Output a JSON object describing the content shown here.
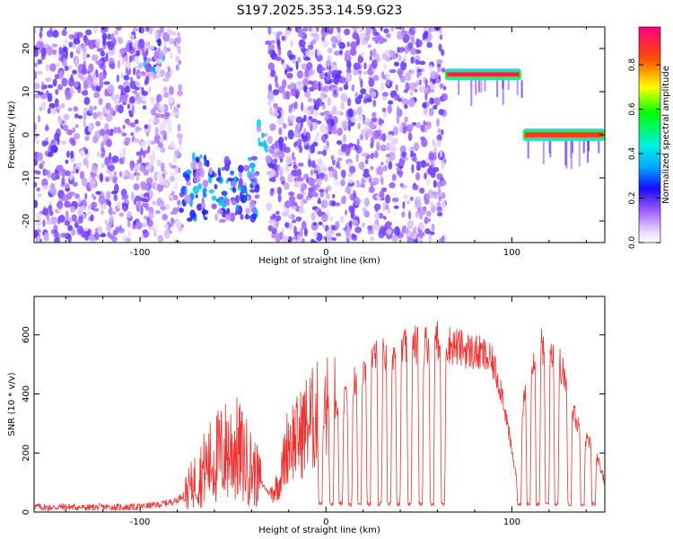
{
  "chart_data": [
    {
      "type": "heatmap",
      "title": "S197.2025.353.14.59.G23",
      "xlabel": "Height of straight line (km)",
      "ylabel": "Frequency (Hz)",
      "xlim": [
        -157,
        150
      ],
      "ylim": [
        -25,
        25
      ],
      "x_ticks": [
        -100,
        0,
        100
      ],
      "x_tick_labels": [
        "-100",
        "0",
        "100"
      ],
      "y_ticks": [
        -20,
        -10,
        0,
        10,
        20
      ],
      "y_tick_labels": [
        "-20",
        "-10",
        "0",
        "10",
        "20"
      ],
      "colorbar": {
        "label": "Normalized spectral amplitude",
        "range": [
          0,
          0.97
        ],
        "ticks": [
          0.0,
          0.2,
          0.4,
          0.6,
          0.8
        ],
        "tick_labels": [
          "0.0",
          "0.2",
          "0.4",
          "0.6",
          "0.8"
        ],
        "colormap": "rainbow"
      },
      "features": [
        {
          "name": "diffuse-noise-1",
          "x_range": [
            -157,
            -95
          ],
          "freq_range": [
            -25,
            25
          ],
          "amplitude": 0.15
        },
        {
          "name": "noise-spot-upper",
          "x_range": [
            -98,
            -88
          ],
          "freq_range": [
            15,
            22
          ],
          "amplitude": 0.3
        },
        {
          "name": "diffuse-noise-2",
          "x_range": [
            -95,
            -78
          ],
          "freq_range": [
            -25,
            25
          ],
          "amplitude": 0.1
        },
        {
          "name": "signal-cluster",
          "x_range": [
            -78,
            -37
          ],
          "freq_range": [
            -20,
            -5
          ],
          "amplitude": 0.3
        },
        {
          "name": "signal-spot",
          "x_range": [
            -37,
            -31
          ],
          "freq_range": [
            -4,
            3
          ],
          "amplitude": 0.3
        },
        {
          "name": "diffuse-noise-3",
          "x_range": [
            -31,
            64
          ],
          "freq_range": [
            -25,
            25
          ],
          "amplitude": 0.15
        },
        {
          "name": "tone-1",
          "x_range": [
            64,
            105
          ],
          "freq_range": [
            13.5,
            14.5
          ],
          "amplitude": 0.95
        },
        {
          "name": "tone-2",
          "x_range": [
            106,
            150
          ],
          "freq_range": [
            -0.6,
            0.6
          ],
          "amplitude": 0.9
        }
      ]
    },
    {
      "type": "line",
      "title": "",
      "xlabel": "Height of straight line (km)",
      "ylabel": "SNR (10 * v/v)",
      "xlim": [
        -157,
        150
      ],
      "ylim": [
        0,
        730
      ],
      "x_ticks": [
        -100,
        0,
        100
      ],
      "x_tick_labels": [
        "-100",
        "0",
        "100"
      ],
      "y_ticks": [
        0,
        200,
        400,
        600
      ],
      "y_tick_labels": [
        "0",
        "200",
        "400",
        "600"
      ],
      "line_color": "#ee3333",
      "x": [
        -157,
        -150,
        -140,
        -130,
        -120,
        -110,
        -100,
        -90,
        -80,
        -75,
        -70,
        -65,
        -60,
        -55,
        -50,
        -45,
        -40,
        -35,
        -30,
        -25,
        -20,
        -15,
        -10,
        -5,
        0,
        5,
        10,
        15,
        20,
        25,
        30,
        35,
        40,
        45,
        50,
        55,
        60,
        65,
        70,
        75,
        80,
        85,
        90,
        95,
        100,
        103,
        106,
        110,
        115,
        120,
        125,
        130,
        135,
        140,
        145,
        150
      ],
      "y": [
        20,
        15,
        18,
        15,
        17,
        16,
        18,
        25,
        40,
        70,
        110,
        150,
        180,
        200,
        220,
        190,
        150,
        100,
        60,
        100,
        250,
        250,
        300,
        320,
        340,
        350,
        380,
        440,
        480,
        520,
        530,
        540,
        550,
        560,
        570,
        570,
        580,
        570,
        560,
        550,
        540,
        530,
        500,
        400,
        200,
        100,
        350,
        520,
        560,
        560,
        520,
        420,
        300,
        250,
        200,
        100
      ],
      "dips": [
        {
          "x": -3,
          "min": 20
        },
        {
          "x": 3,
          "min": 20
        },
        {
          "x": 8,
          "min": 20
        },
        {
          "x": 13,
          "min": 20
        },
        {
          "x": 18,
          "min": 20
        },
        {
          "x": 23,
          "min": 20
        },
        {
          "x": 29,
          "min": 20
        },
        {
          "x": 34,
          "min": 20
        },
        {
          "x": 39,
          "min": 20
        },
        {
          "x": 45,
          "min": 20
        },
        {
          "x": 51,
          "min": 20
        },
        {
          "x": 57,
          "min": 20
        },
        {
          "x": 63,
          "min": 20
        },
        {
          "x": 104,
          "min": 20
        },
        {
          "x": 109,
          "min": 20
        },
        {
          "x": 114,
          "min": 20
        },
        {
          "x": 119,
          "min": 20
        },
        {
          "x": 124,
          "min": 20
        },
        {
          "x": 131,
          "min": 20
        },
        {
          "x": 138,
          "min": 20
        },
        {
          "x": 144,
          "min": 20
        }
      ]
    }
  ]
}
